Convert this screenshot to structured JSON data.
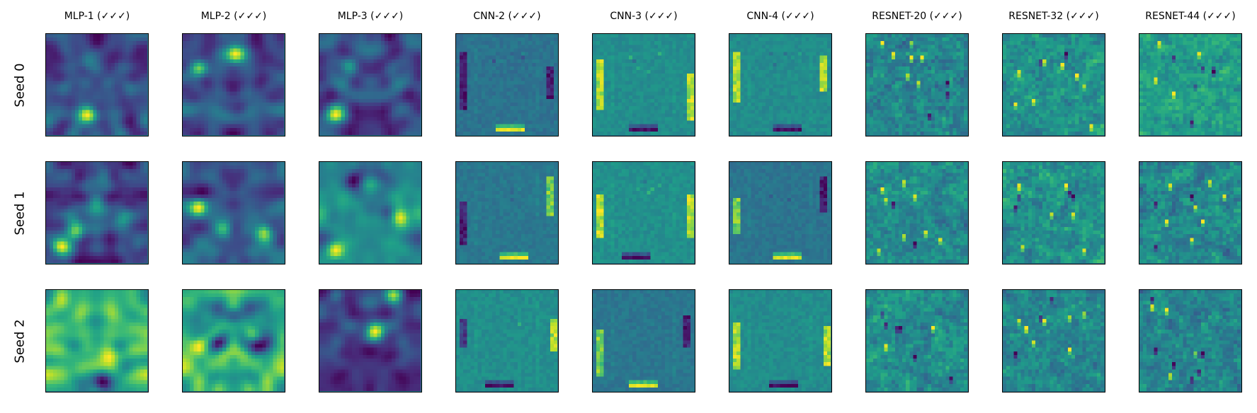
{
  "chart_data": {
    "type": "heatmap",
    "colormap": "viridis",
    "grid": false,
    "columns": [
      "MLP-1 (✓✓✓)",
      "MLP-2 (✓✓✓)",
      "MLP-3 (✓✓✓)",
      "CNN-2 (✓✓✓)",
      "CNN-3 (✓✓✓)",
      "CNN-4 (✓✓✓)",
      "RESNET-20 (✓✓✓)",
      "RESNET-32 (✓✓✓)",
      "RESNET-44 (✓✓✓)"
    ],
    "rows": [
      "Seed 0",
      "Seed 1",
      "Seed 2"
    ],
    "image_resolution": [
      28,
      28
    ]
  }
}
